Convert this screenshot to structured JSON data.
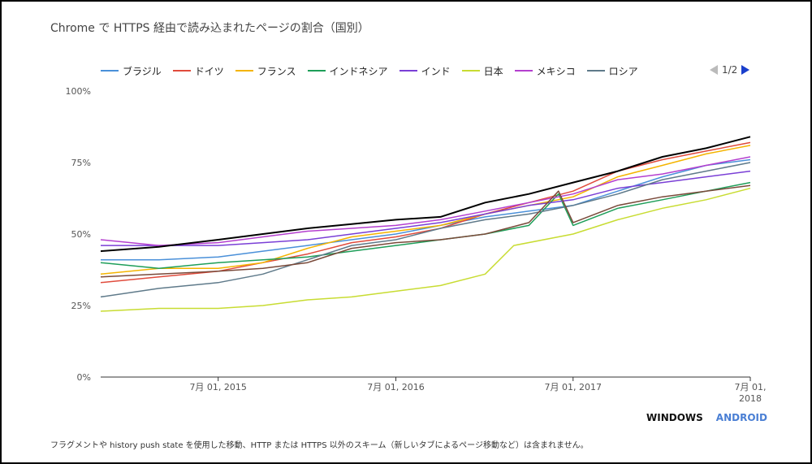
{
  "title": "Chrome で HTTPS 経由で読み込まれたページの割合（国別）",
  "pager": {
    "label": "1/2"
  },
  "tabs": {
    "windows": "WINDOWS",
    "android": "ANDROID"
  },
  "footnote": "フラグメントや history push state を使用した移動、HTTP または HTTPS 以外のスキーム（新しいタブによるページ移動など）は含まれません。",
  "chart_data": {
    "type": "line",
    "legend_position": "top",
    "grid": false,
    "xlim": [
      "2014-11-01",
      "2018-07-01"
    ],
    "ylim": [
      0,
      100
    ],
    "ytick_labels": [
      {
        "value": 0,
        "label": "0%"
      },
      {
        "value": 25,
        "label": "25%"
      },
      {
        "value": 50,
        "label": "50%"
      },
      {
        "value": 75,
        "label": "75%"
      },
      {
        "value": 100,
        "label": "100%"
      }
    ],
    "xtick_labels": [
      {
        "date": "2015-07-01",
        "lines": [
          "7月 01, 2015"
        ]
      },
      {
        "date": "2016-07-01",
        "lines": [
          "7月 01, 2016"
        ]
      },
      {
        "date": "2017-07-01",
        "lines": [
          "7月 01, 2017"
        ]
      },
      {
        "date": "2018-07-01",
        "lines": [
          "7月 01,",
          "2018"
        ]
      }
    ],
    "series": [
      {
        "name": "",
        "legend": false,
        "color": "#000000",
        "width": 2,
        "points": [
          [
            "2014-11-01",
            44
          ],
          [
            "2015-03-01",
            45.5
          ],
          [
            "2015-07-01",
            48
          ],
          [
            "2015-10-01",
            50
          ],
          [
            "2016-01-01",
            52
          ],
          [
            "2016-04-01",
            53.5
          ],
          [
            "2016-07-01",
            55
          ],
          [
            "2016-10-01",
            56
          ],
          [
            "2017-01-01",
            61
          ],
          [
            "2017-04-01",
            64
          ],
          [
            "2017-07-01",
            68
          ],
          [
            "2017-10-01",
            72
          ],
          [
            "2018-01-01",
            77
          ],
          [
            "2018-04-01",
            80
          ],
          [
            "2018-07-01",
            84
          ]
        ]
      },
      {
        "name": "ブラジル",
        "legend": true,
        "color": "#4a90d9",
        "width": 1.5,
        "points": [
          [
            "2014-11-01",
            41
          ],
          [
            "2015-03-01",
            41
          ],
          [
            "2015-07-01",
            42
          ],
          [
            "2015-10-01",
            44
          ],
          [
            "2016-01-01",
            46
          ],
          [
            "2016-04-01",
            48
          ],
          [
            "2016-07-01",
            50
          ],
          [
            "2016-10-01",
            53
          ],
          [
            "2017-01-01",
            56
          ],
          [
            "2017-04-01",
            58
          ],
          [
            "2017-07-01",
            60
          ],
          [
            "2017-10-01",
            65
          ],
          [
            "2018-01-01",
            70
          ],
          [
            "2018-04-01",
            74
          ],
          [
            "2018-07-01",
            76
          ]
        ]
      },
      {
        "name": "ドイツ",
        "legend": true,
        "color": "#e04b3c",
        "width": 1.5,
        "points": [
          [
            "2014-11-01",
            33
          ],
          [
            "2015-03-01",
            35
          ],
          [
            "2015-07-01",
            37
          ],
          [
            "2015-10-01",
            40
          ],
          [
            "2016-01-01",
            43
          ],
          [
            "2016-04-01",
            47
          ],
          [
            "2016-07-01",
            49
          ],
          [
            "2016-10-01",
            52
          ],
          [
            "2017-01-01",
            57
          ],
          [
            "2017-04-01",
            61
          ],
          [
            "2017-07-01",
            65
          ],
          [
            "2017-10-01",
            72
          ],
          [
            "2018-01-01",
            76
          ],
          [
            "2018-04-01",
            79
          ],
          [
            "2018-07-01",
            82
          ]
        ]
      },
      {
        "name": "フランス",
        "legend": true,
        "color": "#f4b400",
        "width": 1.5,
        "points": [
          [
            "2014-11-01",
            36
          ],
          [
            "2015-03-01",
            38
          ],
          [
            "2015-07-01",
            38
          ],
          [
            "2015-10-01",
            40
          ],
          [
            "2016-01-01",
            45
          ],
          [
            "2016-04-01",
            49
          ],
          [
            "2016-07-01",
            51
          ],
          [
            "2016-10-01",
            53
          ],
          [
            "2017-01-01",
            57
          ],
          [
            "2017-04-01",
            60
          ],
          [
            "2017-07-01",
            63
          ],
          [
            "2017-10-01",
            70
          ],
          [
            "2018-01-01",
            74
          ],
          [
            "2018-04-01",
            78
          ],
          [
            "2018-07-01",
            81
          ]
        ]
      },
      {
        "name": "インドネシア",
        "legend": true,
        "color": "#1e9e59",
        "width": 1.5,
        "points": [
          [
            "2014-11-01",
            40
          ],
          [
            "2015-03-01",
            38
          ],
          [
            "2015-07-01",
            40
          ],
          [
            "2015-10-01",
            41
          ],
          [
            "2016-01-01",
            42
          ],
          [
            "2016-04-01",
            44
          ],
          [
            "2016-07-01",
            46
          ],
          [
            "2016-10-01",
            48
          ],
          [
            "2017-01-01",
            50
          ],
          [
            "2017-04-01",
            53
          ],
          [
            "2017-06-01",
            64
          ],
          [
            "2017-07-01",
            53
          ],
          [
            "2017-10-01",
            59
          ],
          [
            "2018-01-01",
            62
          ],
          [
            "2018-04-01",
            65
          ],
          [
            "2018-07-01",
            68
          ]
        ]
      },
      {
        "name": "インド",
        "legend": true,
        "color": "#7a3fd6",
        "width": 1.5,
        "points": [
          [
            "2014-11-01",
            46
          ],
          [
            "2015-03-01",
            46
          ],
          [
            "2015-07-01",
            46
          ],
          [
            "2015-10-01",
            47
          ],
          [
            "2016-01-01",
            48
          ],
          [
            "2016-04-01",
            50
          ],
          [
            "2016-07-01",
            52
          ],
          [
            "2016-10-01",
            54
          ],
          [
            "2017-01-01",
            57
          ],
          [
            "2017-04-01",
            60
          ],
          [
            "2017-07-01",
            62
          ],
          [
            "2017-10-01",
            66
          ],
          [
            "2018-01-01",
            68
          ],
          [
            "2018-04-01",
            70
          ],
          [
            "2018-07-01",
            72
          ]
        ]
      },
      {
        "name": "日本",
        "legend": true,
        "color": "#c8dc32",
        "width": 1.5,
        "points": [
          [
            "2014-11-01",
            23
          ],
          [
            "2015-03-01",
            24
          ],
          [
            "2015-07-01",
            24
          ],
          [
            "2015-10-01",
            25
          ],
          [
            "2016-01-01",
            27
          ],
          [
            "2016-04-01",
            28
          ],
          [
            "2016-07-01",
            30
          ],
          [
            "2016-10-01",
            32
          ],
          [
            "2017-01-01",
            36
          ],
          [
            "2017-03-01",
            46
          ],
          [
            "2017-07-01",
            50
          ],
          [
            "2017-10-01",
            55
          ],
          [
            "2018-01-01",
            59
          ],
          [
            "2018-04-01",
            62
          ],
          [
            "2018-07-01",
            66
          ]
        ]
      },
      {
        "name": "メキシコ",
        "legend": true,
        "color": "#b43fcf",
        "width": 1.5,
        "points": [
          [
            "2014-11-01",
            48
          ],
          [
            "2015-03-01",
            46
          ],
          [
            "2015-07-01",
            47
          ],
          [
            "2015-10-01",
            49
          ],
          [
            "2016-01-01",
            51
          ],
          [
            "2016-04-01",
            52
          ],
          [
            "2016-07-01",
            53
          ],
          [
            "2016-10-01",
            55
          ],
          [
            "2017-01-01",
            58
          ],
          [
            "2017-04-01",
            61
          ],
          [
            "2017-07-01",
            64
          ],
          [
            "2017-10-01",
            69
          ],
          [
            "2018-01-01",
            71
          ],
          [
            "2018-04-01",
            74
          ],
          [
            "2018-07-01",
            77
          ]
        ]
      },
      {
        "name": "ロシア",
        "legend": true,
        "color": "#5f7a8a",
        "width": 1.5,
        "points": [
          [
            "2014-11-01",
            28
          ],
          [
            "2015-03-01",
            31
          ],
          [
            "2015-07-01",
            33
          ],
          [
            "2015-10-01",
            36
          ],
          [
            "2016-01-01",
            41
          ],
          [
            "2016-04-01",
            46
          ],
          [
            "2016-07-01",
            48
          ],
          [
            "2016-10-01",
            52
          ],
          [
            "2017-01-01",
            55
          ],
          [
            "2017-04-01",
            57
          ],
          [
            "2017-07-01",
            60
          ],
          [
            "2017-10-01",
            64
          ],
          [
            "2018-01-01",
            69
          ],
          [
            "2018-04-01",
            72
          ],
          [
            "2018-07-01",
            75
          ]
        ]
      },
      {
        "name": "",
        "legend": false,
        "color": "#7a4a3a",
        "width": 1.5,
        "points": [
          [
            "2014-11-01",
            35
          ],
          [
            "2015-03-01",
            36
          ],
          [
            "2015-07-01",
            37
          ],
          [
            "2015-10-01",
            38
          ],
          [
            "2016-01-01",
            40
          ],
          [
            "2016-04-01",
            45
          ],
          [
            "2016-07-01",
            47
          ],
          [
            "2016-10-01",
            48
          ],
          [
            "2017-01-01",
            50
          ],
          [
            "2017-04-01",
            54
          ],
          [
            "2017-06-01",
            65
          ],
          [
            "2017-07-01",
            54
          ],
          [
            "2017-10-01",
            60
          ],
          [
            "2018-01-01",
            63
          ],
          [
            "2018-04-01",
            65
          ],
          [
            "2018-07-01",
            67
          ]
        ]
      }
    ]
  }
}
